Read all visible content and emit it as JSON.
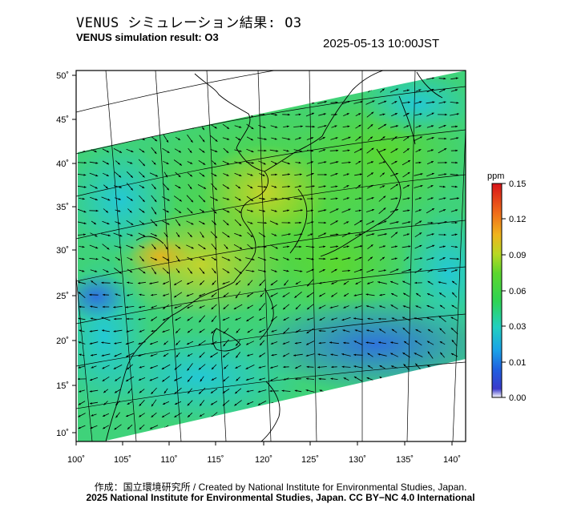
{
  "header": {
    "title_jp": "VENUS シミュレーション結果: O3",
    "title_en": "VENUS simulation result: O3",
    "timestamp": "2025-05-13 10:00JST"
  },
  "map": {
    "lon_range": [
      100,
      142
    ],
    "lat_range": [
      9,
      50
    ],
    "lon_ticks": [
      "100˚",
      "105˚",
      "110˚",
      "115˚",
      "120˚",
      "125˚",
      "130˚",
      "135˚",
      "140˚"
    ],
    "lat_ticks": [
      "10˚",
      "15˚",
      "20˚",
      "25˚",
      "30˚",
      "35˚",
      "40˚",
      "45˚",
      "50˚"
    ],
    "field_colors": [
      "#1e4fd8",
      "#27a7e8",
      "#1fd0c0",
      "#2ed36a",
      "#48d83c",
      "#8fdc2c",
      "#c9d52a",
      "#e8a21e"
    ],
    "wind_vectors": "shown"
  },
  "colorbar": {
    "unit": "ppm",
    "tick_labels": [
      "0.00",
      "0.01",
      "0.03",
      "0.06",
      "0.09",
      "0.12",
      "0.15"
    ],
    "colors": [
      "#ffffff",
      "#1f3fd6",
      "#1aa2e8",
      "#22d0b8",
      "#2ed44e",
      "#9ad826",
      "#f0b41c",
      "#f05a1a",
      "#e01a14"
    ]
  },
  "footer": {
    "credit_line_1": "作成：国立環境研究所 / Created by National Institute for Environmental Studies, Japan.",
    "credit_line_2": "2025 National Institute for Environmental Studies, Japan. CC BY−NC 4.0 International"
  }
}
